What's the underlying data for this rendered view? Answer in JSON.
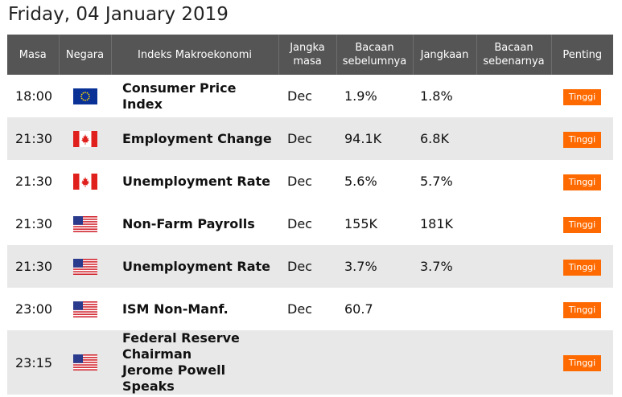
{
  "page": {
    "title": "Friday, 04 January 2019"
  },
  "columns": {
    "time": "Masa",
    "country": "Negara",
    "event": "Indeks Makroekonomi",
    "period": "Jangka masa",
    "previous": "Bacaan sebelumnya",
    "consensus": "Jangkaan",
    "actual": "Bacaan sebenarnya",
    "importance": "Penting"
  },
  "colors": {
    "header_bg": "#555555",
    "stripe_bg": "#e8e8e8",
    "badge_bg": "#ff6a00"
  },
  "rows": [
    {
      "time": "18:00",
      "flag": "eu-flag-icon",
      "event": "Consumer Price Index",
      "period": "Dec",
      "previous": "1.9%",
      "consensus": "1.8%",
      "actual": "",
      "importance": "Tinggi"
    },
    {
      "time": "21:30",
      "flag": "canada-flag-icon",
      "event": "Employment Change",
      "period": "Dec",
      "previous": "94.1K",
      "consensus": "6.8K",
      "actual": "",
      "importance": "Tinggi"
    },
    {
      "time": "21:30",
      "flag": "canada-flag-icon",
      "event": "Unemployment Rate",
      "period": "Dec",
      "previous": "5.6%",
      "consensus": "5.7%",
      "actual": "",
      "importance": "Tinggi"
    },
    {
      "time": "21:30",
      "flag": "us-flag-icon",
      "event": "Non-Farm Payrolls",
      "period": "Dec",
      "previous": "155K",
      "consensus": "181K",
      "actual": "",
      "importance": "Tinggi"
    },
    {
      "time": "21:30",
      "flag": "us-flag-icon",
      "event": "Unemployment Rate",
      "period": "Dec",
      "previous": "3.7%",
      "consensus": "3.7%",
      "actual": "",
      "importance": "Tinggi"
    },
    {
      "time": "23:00",
      "flag": "us-flag-icon",
      "event": "ISM Non-Manf.",
      "period": "Dec",
      "previous": "60.7",
      "consensus": "",
      "actual": "",
      "importance": "Tinggi"
    },
    {
      "time": "23:15",
      "flag": "us-flag-icon",
      "event": "Federal Reserve Chairman Jerome Powell Speaks",
      "period": "",
      "previous": "",
      "consensus": "",
      "actual": "",
      "importance": "Tinggi"
    }
  ]
}
